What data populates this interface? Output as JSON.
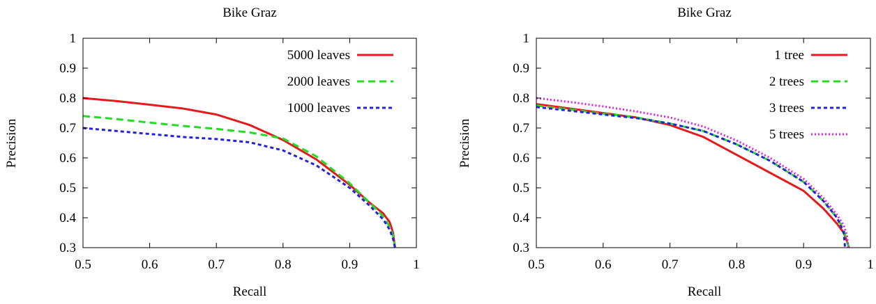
{
  "chart_data": [
    {
      "type": "line",
      "title": "Bike Graz",
      "xlabel": "Recall",
      "ylabel": "Precision",
      "xlim": [
        0.5,
        1
      ],
      "ylim": [
        0.3,
        1
      ],
      "xticks": [
        0.5,
        0.6,
        0.7,
        0.8,
        0.9,
        1
      ],
      "xtick_labels": [
        "0.5",
        "0.6",
        "0.7",
        "0.8",
        "0.9",
        "1"
      ],
      "yticks": [
        0.3,
        0.4,
        0.5,
        0.6,
        0.7,
        0.8,
        0.9,
        1
      ],
      "ytick_labels": [
        "0.3",
        "0.4",
        "0.5",
        "0.6",
        "0.7",
        "0.8",
        "0.9",
        "1"
      ],
      "legend_position": "top-right",
      "series": [
        {
          "name": "5000 leaves",
          "color": "#e41a1c",
          "dash": "solid",
          "points": [
            [
              0.5,
              0.8
            ],
            [
              0.55,
              0.79
            ],
            [
              0.6,
              0.778
            ],
            [
              0.65,
              0.765
            ],
            [
              0.7,
              0.745
            ],
            [
              0.75,
              0.71
            ],
            [
              0.8,
              0.66
            ],
            [
              0.85,
              0.595
            ],
            [
              0.9,
              0.51
            ],
            [
              0.93,
              0.45
            ],
            [
              0.95,
              0.415
            ],
            [
              0.96,
              0.385
            ],
            [
              0.965,
              0.35
            ],
            [
              0.968,
              0.3
            ]
          ]
        },
        {
          "name": "2000 leaves",
          "color": "#22dd22",
          "dash": "dashed",
          "points": [
            [
              0.5,
              0.74
            ],
            [
              0.55,
              0.73
            ],
            [
              0.6,
              0.718
            ],
            [
              0.65,
              0.707
            ],
            [
              0.7,
              0.697
            ],
            [
              0.75,
              0.685
            ],
            [
              0.8,
              0.665
            ],
            [
              0.85,
              0.605
            ],
            [
              0.9,
              0.515
            ],
            [
              0.93,
              0.45
            ],
            [
              0.95,
              0.405
            ],
            [
              0.96,
              0.37
            ],
            [
              0.965,
              0.34
            ],
            [
              0.968,
              0.3
            ]
          ]
        },
        {
          "name": "1000 leaves",
          "color": "#2222dd",
          "dash": "dotted",
          "points": [
            [
              0.5,
              0.7
            ],
            [
              0.55,
              0.69
            ],
            [
              0.6,
              0.68
            ],
            [
              0.65,
              0.67
            ],
            [
              0.7,
              0.663
            ],
            [
              0.75,
              0.652
            ],
            [
              0.8,
              0.625
            ],
            [
              0.85,
              0.575
            ],
            [
              0.9,
              0.5
            ],
            [
              0.93,
              0.44
            ],
            [
              0.95,
              0.395
            ],
            [
              0.96,
              0.36
            ],
            [
              0.965,
              0.33
            ],
            [
              0.968,
              0.3
            ]
          ]
        }
      ]
    },
    {
      "type": "line",
      "title": "Bike Graz",
      "xlabel": "Recall",
      "ylabel": "Precision",
      "xlim": [
        0.5,
        1
      ],
      "ylim": [
        0.3,
        1
      ],
      "xticks": [
        0.5,
        0.6,
        0.7,
        0.8,
        0.9,
        1
      ],
      "xtick_labels": [
        "0.5",
        "0.6",
        "0.7",
        "0.8",
        "0.9",
        "1"
      ],
      "yticks": [
        0.3,
        0.4,
        0.5,
        0.6,
        0.7,
        0.8,
        0.9,
        1
      ],
      "ytick_labels": [
        "0.3",
        "0.4",
        "0.5",
        "0.6",
        "0.7",
        "0.8",
        "0.9",
        "1"
      ],
      "legend_position": "top-right",
      "series": [
        {
          "name": "1 tree",
          "color": "#e41a1c",
          "dash": "solid",
          "points": [
            [
              0.5,
              0.78
            ],
            [
              0.55,
              0.765
            ],
            [
              0.6,
              0.75
            ],
            [
              0.65,
              0.735
            ],
            [
              0.7,
              0.71
            ],
            [
              0.75,
              0.67
            ],
            [
              0.8,
              0.61
            ],
            [
              0.85,
              0.55
            ],
            [
              0.9,
              0.49
            ],
            [
              0.93,
              0.43
            ],
            [
              0.95,
              0.38
            ],
            [
              0.96,
              0.35
            ],
            [
              0.965,
              0.32
            ],
            [
              0.968,
              0.3
            ]
          ]
        },
        {
          "name": "2 trees",
          "color": "#22dd22",
          "dash": "dashed",
          "points": [
            [
              0.5,
              0.775
            ],
            [
              0.55,
              0.762
            ],
            [
              0.6,
              0.748
            ],
            [
              0.65,
              0.735
            ],
            [
              0.7,
              0.715
            ],
            [
              0.75,
              0.69
            ],
            [
              0.8,
              0.645
            ],
            [
              0.85,
              0.59
            ],
            [
              0.9,
              0.52
            ],
            [
              0.93,
              0.455
            ],
            [
              0.95,
              0.4
            ],
            [
              0.96,
              0.36
            ],
            [
              0.965,
              0.32
            ],
            [
              0.968,
              0.3
            ]
          ]
        },
        {
          "name": "3 trees",
          "color": "#2222dd",
          "dash": "dotted",
          "points": [
            [
              0.5,
              0.77
            ],
            [
              0.55,
              0.758
            ],
            [
              0.6,
              0.745
            ],
            [
              0.65,
              0.733
            ],
            [
              0.7,
              0.715
            ],
            [
              0.75,
              0.69
            ],
            [
              0.8,
              0.645
            ],
            [
              0.85,
              0.59
            ],
            [
              0.9,
              0.52
            ],
            [
              0.93,
              0.455
            ],
            [
              0.95,
              0.4
            ],
            [
              0.96,
              0.35
            ],
            [
              0.962,
              0.3
            ]
          ]
        },
        {
          "name": "5 trees",
          "color": "#e020e0",
          "dash": "dense-dotted",
          "points": [
            [
              0.5,
              0.8
            ],
            [
              0.55,
              0.787
            ],
            [
              0.6,
              0.772
            ],
            [
              0.65,
              0.755
            ],
            [
              0.7,
              0.735
            ],
            [
              0.75,
              0.705
            ],
            [
              0.8,
              0.658
            ],
            [
              0.85,
              0.6
            ],
            [
              0.9,
              0.53
            ],
            [
              0.93,
              0.465
            ],
            [
              0.95,
              0.41
            ],
            [
              0.96,
              0.375
            ],
            [
              0.965,
              0.34
            ],
            [
              0.967,
              0.3
            ]
          ]
        }
      ]
    }
  ]
}
